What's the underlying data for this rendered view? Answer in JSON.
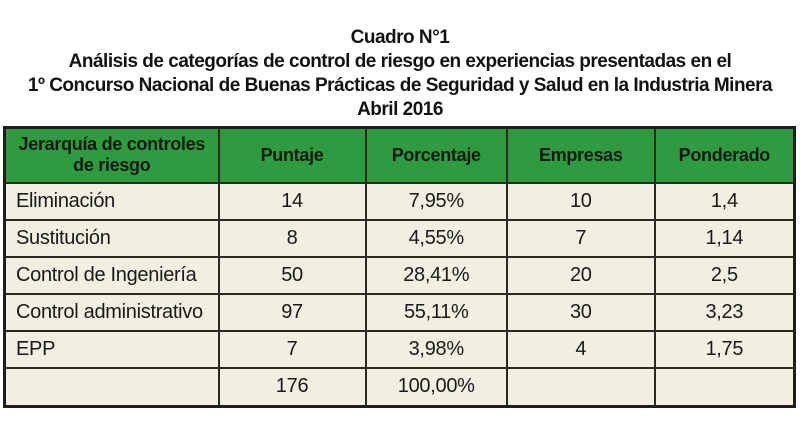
{
  "title": {
    "line1": "Cuadro N°1",
    "line2": "Análisis de categorías de control de riesgo en experiencias presentadas en el",
    "line3": "1º Concurso Nacional de Buenas Prácticas de Seguridad y Salud en la Industria Minera",
    "line4": "Abril 2016"
  },
  "colors": {
    "header_green": "#2e9b41",
    "row_cream": "#f0efe1",
    "border_dark": "#2b2b24",
    "title_text": "#121212",
    "header_text": "#0d1a0d"
  },
  "table": {
    "headers": [
      "Jerarquía de controles de riesgo",
      "Puntaje",
      "Porcentaje",
      "Empresas",
      "Ponderado"
    ],
    "rows": [
      {
        "cells": [
          "Eliminación",
          "14",
          "7,95%",
          "10",
          "1,4"
        ]
      },
      {
        "cells": [
          "Sustitución",
          "8",
          "4,55%",
          "7",
          "1,14"
        ]
      },
      {
        "cells": [
          "Control de Ingeniería",
          "50",
          "28,41%",
          "20",
          "2,5"
        ]
      },
      {
        "cells": [
          "Control administrativo",
          "97",
          "55,11%",
          "30",
          "3,23"
        ]
      },
      {
        "cells": [
          "EPP",
          "7",
          "3,98%",
          "4",
          "1,75"
        ]
      },
      {
        "cells": [
          "",
          "176",
          "100,00%",
          "",
          ""
        ]
      }
    ]
  },
  "chart_data": {
    "type": "table",
    "title": "Cuadro N°1 — Análisis de categorías de control de riesgo, Abril 2016",
    "columns": [
      "Jerarquía de controles de riesgo",
      "Puntaje",
      "Porcentaje",
      "Empresas",
      "Ponderado"
    ],
    "categories": [
      "Eliminación",
      "Sustitución",
      "Control de Ingeniería",
      "Control administrativo",
      "EPP"
    ],
    "series": [
      {
        "name": "Puntaje",
        "values": [
          14,
          8,
          50,
          97,
          7
        ]
      },
      {
        "name": "Porcentaje",
        "values": [
          7.95,
          4.55,
          28.41,
          55.11,
          3.98
        ]
      },
      {
        "name": "Empresas",
        "values": [
          10,
          7,
          20,
          30,
          4
        ]
      },
      {
        "name": "Ponderado",
        "values": [
          1.4,
          1.14,
          2.5,
          3.23,
          1.75
        ]
      }
    ],
    "totals": {
      "Puntaje": 176,
      "Porcentaje": 100.0
    }
  }
}
